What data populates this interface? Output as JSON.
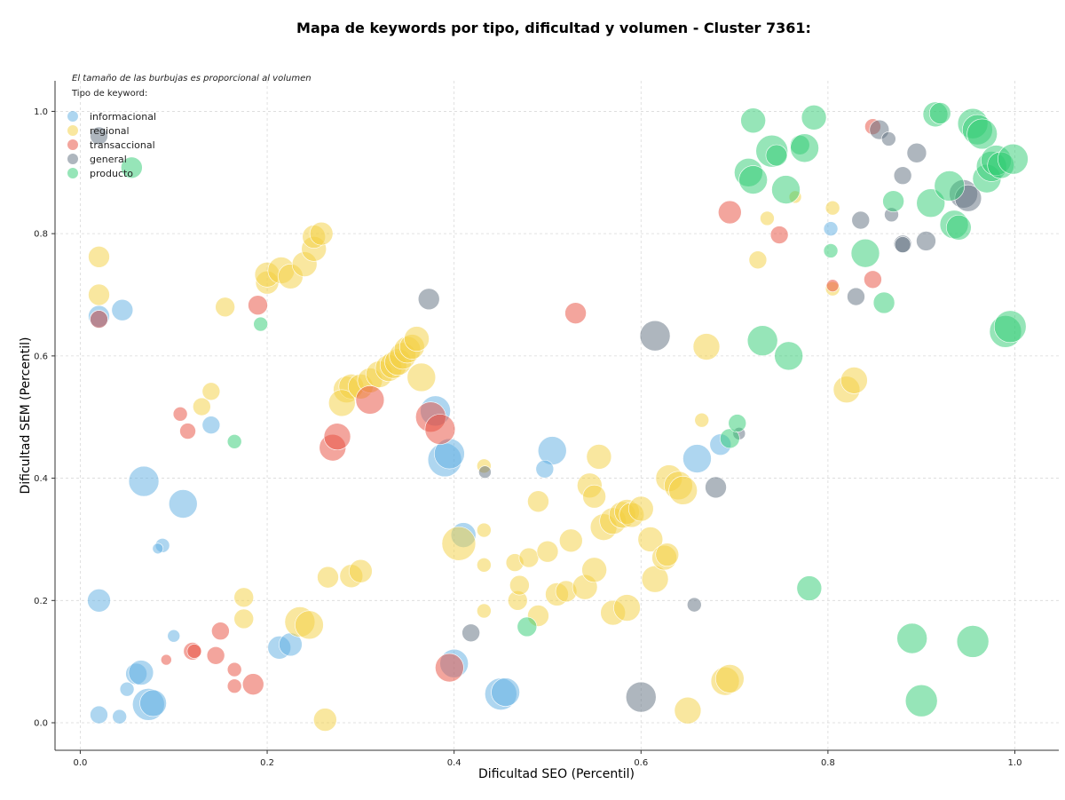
{
  "chart_data": {
    "type": "scatter",
    "title": "Mapa de keywords por tipo, dificultad y volumen - Cluster 7361:",
    "xlabel": "Dificultad SEO (Percentil)",
    "ylabel": "Dificultad SEM (Percentil)",
    "xlim": [
      -0.027,
      1.047
    ],
    "ylim": [
      -0.045,
      1.05
    ],
    "xticks": [
      "0.0",
      "0.2",
      "0.4",
      "0.6",
      "0.8",
      "1.0"
    ],
    "yticks": [
      "0.0",
      "0.2",
      "0.4",
      "0.6",
      "0.8",
      "1.0"
    ],
    "grid": true,
    "legend": {
      "title": "Tipo de keyword:",
      "position": "top-left"
    },
    "note": "El tamaño de las burbujas es proporcional al volumen",
    "series": [
      {
        "name": "informacional",
        "color": "#5DADE2",
        "points": [
          [
            0.02,
            0.665,
            12
          ],
          [
            0.045,
            0.675,
            12
          ],
          [
            0.02,
            0.66,
            10
          ],
          [
            0.068,
            0.395,
            17
          ],
          [
            0.11,
            0.358,
            16
          ],
          [
            0.14,
            0.487,
            10
          ],
          [
            0.088,
            0.29,
            8
          ],
          [
            0.083,
            0.285,
            6
          ],
          [
            0.02,
            0.2,
            13
          ],
          [
            0.06,
            0.08,
            12
          ],
          [
            0.065,
            0.082,
            14
          ],
          [
            0.05,
            0.055,
            8
          ],
          [
            0.073,
            0.03,
            18
          ],
          [
            0.078,
            0.032,
            15
          ],
          [
            0.02,
            0.013,
            10
          ],
          [
            0.042,
            0.01,
            8
          ],
          [
            0.1,
            0.142,
            7
          ],
          [
            0.213,
            0.123,
            13
          ],
          [
            0.225,
            0.128,
            13
          ],
          [
            0.38,
            0.51,
            17
          ],
          [
            0.39,
            0.43,
            19
          ],
          [
            0.395,
            0.44,
            17
          ],
          [
            0.41,
            0.307,
            14
          ],
          [
            0.4,
            0.097,
            16
          ],
          [
            0.45,
            0.047,
            18
          ],
          [
            0.455,
            0.05,
            16
          ],
          [
            0.505,
            0.445,
            16
          ],
          [
            0.497,
            0.415,
            10
          ],
          [
            0.66,
            0.432,
            16
          ],
          [
            0.685,
            0.455,
            12
          ],
          [
            0.803,
            0.808,
            8
          ]
        ]
      },
      {
        "name": "regional",
        "color": "#F4D03F",
        "points": [
          [
            0.02,
            0.762,
            12
          ],
          [
            0.02,
            0.7,
            12
          ],
          [
            0.155,
            0.68,
            11
          ],
          [
            0.14,
            0.542,
            10
          ],
          [
            0.13,
            0.517,
            10
          ],
          [
            0.2,
            0.72,
            13
          ],
          [
            0.2,
            0.733,
            14
          ],
          [
            0.215,
            0.74,
            15
          ],
          [
            0.225,
            0.73,
            14
          ],
          [
            0.24,
            0.75,
            14
          ],
          [
            0.25,
            0.775,
            14
          ],
          [
            0.25,
            0.795,
            13
          ],
          [
            0.258,
            0.8,
            13
          ],
          [
            0.285,
            0.545,
            15
          ],
          [
            0.29,
            0.55,
            14
          ],
          [
            0.28,
            0.523,
            15
          ],
          [
            0.3,
            0.55,
            14
          ],
          [
            0.31,
            0.56,
            14
          ],
          [
            0.32,
            0.57,
            15
          ],
          [
            0.33,
            0.58,
            15
          ],
          [
            0.335,
            0.585,
            15
          ],
          [
            0.34,
            0.59,
            15
          ],
          [
            0.345,
            0.6,
            15
          ],
          [
            0.35,
            0.61,
            15
          ],
          [
            0.355,
            0.615,
            14
          ],
          [
            0.36,
            0.628,
            14
          ],
          [
            0.365,
            0.565,
            16
          ],
          [
            0.175,
            0.205,
            11
          ],
          [
            0.175,
            0.17,
            11
          ],
          [
            0.235,
            0.165,
            17
          ],
          [
            0.245,
            0.16,
            16
          ],
          [
            0.265,
            0.238,
            12
          ],
          [
            0.29,
            0.24,
            13
          ],
          [
            0.3,
            0.248,
            13
          ],
          [
            0.262,
            0.005,
            13
          ],
          [
            0.405,
            0.293,
            19
          ],
          [
            0.432,
            0.42,
            8
          ],
          [
            0.432,
            0.315,
            8
          ],
          [
            0.432,
            0.258,
            8
          ],
          [
            0.432,
            0.183,
            8
          ],
          [
            0.465,
            0.262,
            10
          ],
          [
            0.48,
            0.27,
            11
          ],
          [
            0.49,
            0.362,
            12
          ],
          [
            0.5,
            0.28,
            12
          ],
          [
            0.51,
            0.21,
            13
          ],
          [
            0.52,
            0.215,
            12
          ],
          [
            0.525,
            0.298,
            13
          ],
          [
            0.54,
            0.222,
            14
          ],
          [
            0.545,
            0.388,
            14
          ],
          [
            0.55,
            0.37,
            13
          ],
          [
            0.55,
            0.25,
            14
          ],
          [
            0.555,
            0.435,
            14
          ],
          [
            0.56,
            0.32,
            15
          ],
          [
            0.57,
            0.33,
            15
          ],
          [
            0.58,
            0.34,
            15
          ],
          [
            0.585,
            0.345,
            14
          ],
          [
            0.59,
            0.34,
            14
          ],
          [
            0.6,
            0.35,
            14
          ],
          [
            0.61,
            0.3,
            14
          ],
          [
            0.615,
            0.235,
            15
          ],
          [
            0.625,
            0.27,
            14
          ],
          [
            0.628,
            0.275,
            13
          ],
          [
            0.63,
            0.4,
            15
          ],
          [
            0.64,
            0.388,
            16
          ],
          [
            0.645,
            0.38,
            16
          ],
          [
            0.65,
            0.02,
            15
          ],
          [
            0.665,
            0.495,
            8
          ],
          [
            0.67,
            0.615,
            15
          ],
          [
            0.57,
            0.18,
            14
          ],
          [
            0.585,
            0.188,
            15
          ],
          [
            0.468,
            0.2,
            11
          ],
          [
            0.47,
            0.225,
            11
          ],
          [
            0.49,
            0.175,
            12
          ],
          [
            0.69,
            0.068,
            16
          ],
          [
            0.695,
            0.072,
            16
          ],
          [
            0.725,
            0.757,
            10
          ],
          [
            0.735,
            0.825,
            8
          ],
          [
            0.765,
            0.86,
            7
          ],
          [
            0.805,
            0.842,
            8
          ],
          [
            0.82,
            0.545,
            15
          ],
          [
            0.828,
            0.56,
            15
          ],
          [
            0.805,
            0.71,
            8
          ]
        ]
      },
      {
        "name": "transaccional",
        "color": "#E74C3C",
        "points": [
          [
            0.02,
            0.66,
            10
          ],
          [
            0.19,
            0.683,
            11
          ],
          [
            0.107,
            0.505,
            8
          ],
          [
            0.115,
            0.477,
            9
          ],
          [
            0.27,
            0.45,
            15
          ],
          [
            0.275,
            0.468,
            15
          ],
          [
            0.31,
            0.528,
            16
          ],
          [
            0.375,
            0.5,
            17
          ],
          [
            0.385,
            0.48,
            17
          ],
          [
            0.395,
            0.09,
            16
          ],
          [
            0.15,
            0.15,
            10
          ],
          [
            0.12,
            0.117,
            10
          ],
          [
            0.122,
            0.117,
            8
          ],
          [
            0.092,
            0.103,
            6
          ],
          [
            0.145,
            0.11,
            10
          ],
          [
            0.165,
            0.087,
            8
          ],
          [
            0.165,
            0.06,
            8
          ],
          [
            0.185,
            0.063,
            12
          ],
          [
            0.53,
            0.67,
            12
          ],
          [
            0.695,
            0.835,
            13
          ],
          [
            0.748,
            0.798,
            10
          ],
          [
            0.805,
            0.715,
            7
          ],
          [
            0.848,
            0.725,
            10
          ],
          [
            0.848,
            0.975,
            9
          ]
        ]
      },
      {
        "name": "general",
        "color": "#5D6D7E",
        "points": [
          [
            0.02,
            0.96,
            10
          ],
          [
            0.373,
            0.693,
            12
          ],
          [
            0.433,
            0.41,
            7
          ],
          [
            0.418,
            0.147,
            10
          ],
          [
            0.615,
            0.633,
            17
          ],
          [
            0.6,
            0.042,
            17
          ],
          [
            0.68,
            0.385,
            12
          ],
          [
            0.657,
            0.193,
            8
          ],
          [
            0.705,
            0.473,
            7
          ],
          [
            0.835,
            0.822,
            10
          ],
          [
            0.83,
            0.697,
            10
          ],
          [
            0.855,
            0.97,
            11
          ],
          [
            0.865,
            0.955,
            8
          ],
          [
            0.868,
            0.831,
            8
          ],
          [
            0.88,
            0.895,
            10
          ],
          [
            0.895,
            0.932,
            11
          ],
          [
            0.88,
            0.783,
            10
          ],
          [
            0.88,
            0.782,
            9
          ],
          [
            0.905,
            0.788,
            11
          ],
          [
            0.945,
            0.865,
            16
          ],
          [
            0.95,
            0.858,
            15
          ]
        ]
      },
      {
        "name": "producto",
        "color": "#2ECC71",
        "points": [
          [
            0.055,
            0.908,
            12
          ],
          [
            0.193,
            0.652,
            8
          ],
          [
            0.165,
            0.46,
            8
          ],
          [
            0.478,
            0.157,
            11
          ],
          [
            0.695,
            0.465,
            11
          ],
          [
            0.703,
            0.49,
            10
          ],
          [
            0.72,
            0.985,
            14
          ],
          [
            0.715,
            0.9,
            16
          ],
          [
            0.72,
            0.888,
            16
          ],
          [
            0.73,
            0.625,
            17
          ],
          [
            0.74,
            0.935,
            18
          ],
          [
            0.745,
            0.928,
            12
          ],
          [
            0.755,
            0.872,
            16
          ],
          [
            0.758,
            0.6,
            16
          ],
          [
            0.77,
            0.945,
            11
          ],
          [
            0.775,
            0.94,
            16
          ],
          [
            0.785,
            0.99,
            14
          ],
          [
            0.803,
            0.772,
            8
          ],
          [
            0.84,
            0.768,
            16
          ],
          [
            0.86,
            0.687,
            12
          ],
          [
            0.87,
            0.853,
            12
          ],
          [
            0.91,
            0.85,
            16
          ],
          [
            0.915,
            0.995,
            14
          ],
          [
            0.92,
            0.997,
            12
          ],
          [
            0.93,
            0.878,
            17
          ],
          [
            0.935,
            0.815,
            16
          ],
          [
            0.94,
            0.81,
            14
          ],
          [
            0.955,
            0.98,
            17
          ],
          [
            0.96,
            0.97,
            17
          ],
          [
            0.965,
            0.963,
            17
          ],
          [
            0.97,
            0.89,
            16
          ],
          [
            0.975,
            0.91,
            17
          ],
          [
            0.98,
            0.92,
            17
          ],
          [
            0.985,
            0.912,
            15
          ],
          [
            0.99,
            0.64,
            18
          ],
          [
            0.995,
            0.648,
            18
          ],
          [
            0.998,
            0.922,
            17
          ],
          [
            0.78,
            0.22,
            14
          ],
          [
            0.89,
            0.138,
            17
          ],
          [
            0.9,
            0.036,
            18
          ],
          [
            0.955,
            0.133,
            18
          ]
        ]
      }
    ]
  }
}
